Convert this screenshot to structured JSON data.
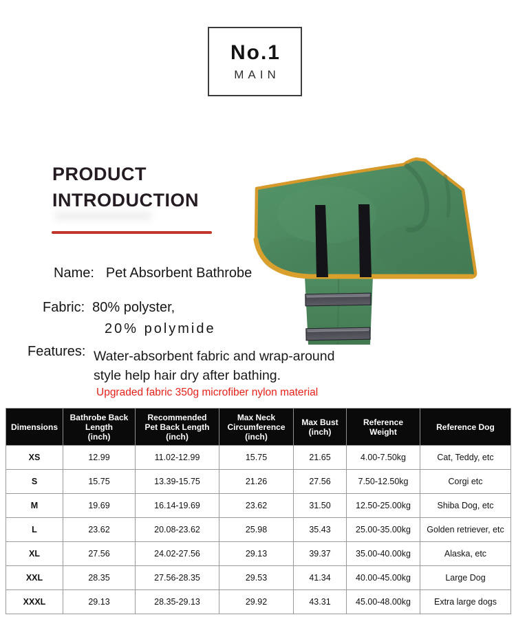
{
  "badge": {
    "line1": "No.1",
    "line2": "MAIN"
  },
  "heading": {
    "line1": "PRODUCT",
    "line2": "INTRODUCTION"
  },
  "specs": {
    "name_label": "Name:",
    "name_value": "Pet Absorbent Bathrobe",
    "fabric_label": "Fabric:",
    "fabric_value_line1": "80% polyster,",
    "fabric_value_line2": "20% polymide",
    "features_label": "Features:",
    "features_line1": "Water-absorbent fabric and wrap-around",
    "features_line2": "style help hair dry after bathing.",
    "upgrade_note": "Upgraded fabric 350g microfiber nylon material"
  },
  "product_image": {
    "description": "green pet bathrobe with collar, two black velcro straps and a belly band with two grey reflective strips",
    "robe_green": "#4a855d",
    "trim_orange": "#d6992b",
    "strap_black": "#141418",
    "strip_grey": "#55555c"
  },
  "colors": {
    "rule_red": "#c2352a",
    "note_red": "#e62119",
    "table_header_bg": "#0a0a0a"
  },
  "size_table": {
    "headers": [
      "Dimensions",
      "Bathrobe Back\nLength\n(inch)",
      "Recommended\nPet Back Length\n(inch)",
      "Max Neck\nCircumference\n(inch)",
      "Max Bust\n(inch)",
      "Reference\nWeight",
      "Reference Dog"
    ],
    "rows": [
      [
        "XS",
        "12.99",
        "11.02-12.99",
        "15.75",
        "21.65",
        "4.00-7.50kg",
        "Cat, Teddy, etc"
      ],
      [
        "S",
        "15.75",
        "13.39-15.75",
        "21.26",
        "27.56",
        "7.50-12.50kg",
        "Corgi etc"
      ],
      [
        "M",
        "19.69",
        "16.14-19.69",
        "23.62",
        "31.50",
        "12.50-25.00kg",
        "Shiba Dog, etc"
      ],
      [
        "L",
        "23.62",
        "20.08-23.62",
        "25.98",
        "35.43",
        "25.00-35.00kg",
        "Golden retriever, etc"
      ],
      [
        "XL",
        "27.56",
        "24.02-27.56",
        "29.13",
        "39.37",
        "35.00-40.00kg",
        "Alaska, etc"
      ],
      [
        "XXL",
        "28.35",
        "27.56-28.35",
        "29.53",
        "41.34",
        "40.00-45.00kg",
        "Large Dog"
      ],
      [
        "XXXL",
        "29.13",
        "28.35-29.13",
        "29.92",
        "43.31",
        "45.00-48.00kg",
        "Extra large dogs"
      ]
    ]
  }
}
